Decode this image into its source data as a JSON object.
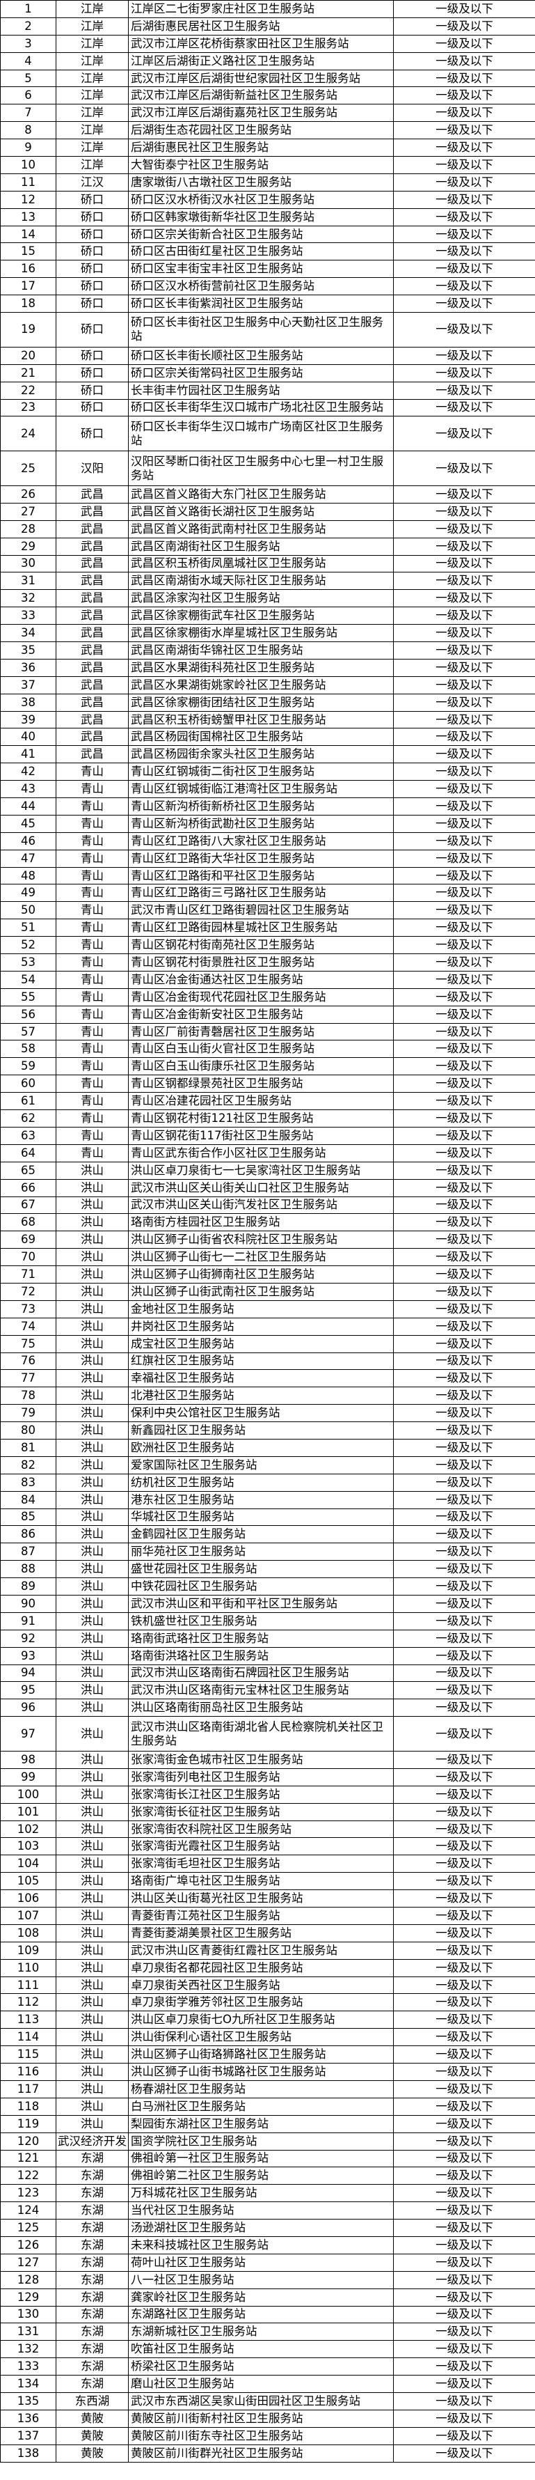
{
  "table": {
    "level": "一级及以下",
    "rows": [
      [
        "1",
        "江岸",
        "江岸区二七街罗家庄社区卫生服务站",
        "一级及以下"
      ],
      [
        "2",
        "江岸",
        "后湖街惠民居社区卫生服务站",
        "一级及以下"
      ],
      [
        "3",
        "江岸",
        "武汉市江岸区花桥街蔡家田社区卫生服务站",
        "一级及以下"
      ],
      [
        "4",
        "江岸",
        "江岸区后湖街正义路社区卫生服务站",
        "一级及以下"
      ],
      [
        "5",
        "江岸",
        "武汉市江岸区后湖街世纪家园社区卫生服务站",
        "一级及以下"
      ],
      [
        "6",
        "江岸",
        "武汉市江岸区后湖街新益社区卫生服务站",
        "一级及以下"
      ],
      [
        "7",
        "江岸",
        "武汉市江岸区后湖街嘉苑社区卫生服务站",
        "一级及以下"
      ],
      [
        "8",
        "江岸",
        "后湖街生态花园社区卫生服务站",
        "一级及以下"
      ],
      [
        "9",
        "江岸",
        "后湖街惠民社区卫生服务站",
        "一级及以下"
      ],
      [
        "10",
        "江岸",
        "大智街泰宁社区卫生服务站",
        "一级及以下"
      ],
      [
        "11",
        "江汉",
        "唐家墩街八古墩社区卫生服务站",
        "一级及以下"
      ],
      [
        "12",
        "硚口",
        "硚口区汉水桥街汉水社区卫生服务站",
        "一级及以下"
      ],
      [
        "13",
        "硚口",
        "硚口区韩家墩街新华社区卫生服务站",
        "一级及以下"
      ],
      [
        "14",
        "硚口",
        "硚口区宗关街新合社区卫生服务站",
        "一级及以下"
      ],
      [
        "15",
        "硚口",
        "硚口区古田街红星社区卫生服务站",
        "一级及以下"
      ],
      [
        "16",
        "硚口",
        "硚口区宝丰街宝丰社区卫生服务站",
        "一级及以下"
      ],
      [
        "17",
        "硚口",
        " 硚口区汉水桥街营前社区卫生服务站",
        "一级及以下"
      ],
      [
        "18",
        "硚口",
        "硚口区长丰街紫润社区卫生服务站",
        "一级及以下"
      ],
      [
        "19",
        "硚口",
        "硚口区长丰街社区卫生服务中心天勤社区卫生服务站",
        "一级及以下"
      ],
      [
        "20",
        "硚口",
        "硚口区长丰街长顺社区卫生服务站",
        "一级及以下"
      ],
      [
        "21",
        "硚口",
        "硚口区宗关街常码社区卫生服务站",
        "一级及以下"
      ],
      [
        "22",
        "硚口",
        "长丰街丰竹园社区卫生服务站",
        "一级及以下"
      ],
      [
        "23",
        "硚口",
        "硚口区长丰街华生汉口城市广场北社区卫生服务站",
        "一级及以下"
      ],
      [
        "24",
        "硚口",
        "硚口区长丰街华生汉口城市广场南区社区卫生服务站",
        "一级及以下"
      ],
      [
        "25",
        "汉阳",
        "汉阳区琴断口街社区卫生服务中心七里一村卫生服务站",
        "一级及以下"
      ],
      [
        "26",
        "武昌",
        "武昌区首义路街大东门社区卫生服务站",
        "一级及以下"
      ],
      [
        "27",
        "武昌",
        "武昌区首义路街长湖社区卫生服务站",
        "一级及以下"
      ],
      [
        "28",
        "武昌",
        "武昌区首义路街武南村社区卫生服务站",
        "一级及以下"
      ],
      [
        "29",
        "武昌",
        "武昌区南湖街社区卫生服务站",
        "一级及以下"
      ],
      [
        "30",
        "武昌",
        "武昌区积玉桥街凤凰城社区卫生服务站",
        "一级及以下"
      ],
      [
        "31",
        "武昌",
        "武昌区南湖街水域天际社区卫生服务站",
        "一级及以下"
      ],
      [
        "32",
        "武昌",
        "武昌区涂家沟社区卫生服务站",
        "一级及以下"
      ],
      [
        "33",
        "武昌",
        "武昌区徐家棚街武车社区卫生服务站",
        "一级及以下"
      ],
      [
        "34",
        "武昌",
        "武昌区徐家棚街水岸星城社区卫生服务站",
        "一级及以下"
      ],
      [
        "35",
        "武昌",
        "武昌区南湖街华锦社区卫生服务站",
        "一级及以下"
      ],
      [
        "36",
        "武昌",
        "武昌区水果湖街科苑社区卫生服务站",
        "一级及以下"
      ],
      [
        "37",
        "武昌",
        "武昌区水果湖街姚家岭社区卫生服务站",
        "一级及以下"
      ],
      [
        "38",
        "武昌",
        "武昌区徐家棚街团结社区卫生服务站",
        "一级及以下"
      ],
      [
        "39",
        "武昌",
        "武昌区积玉桥街螃蟹甲社区卫生服务站",
        "一级及以下"
      ],
      [
        "40",
        "武昌",
        "武昌区杨园街国棉社区卫生服务站",
        "一级及以下"
      ],
      [
        "41",
        "武昌",
        "武昌区杨园街余家头社区卫生服务站",
        "一级及以下"
      ],
      [
        "42",
        "青山",
        "青山区红钢城街二街社区卫生服务站",
        "一级及以下"
      ],
      [
        "43",
        "青山",
        "青山区红钢城街临江港湾社区卫生服务站",
        "一级及以下"
      ],
      [
        "44",
        "青山",
        "青山区新沟桥街新桥社区卫生服务站",
        "一级及以下"
      ],
      [
        "45",
        "青山",
        "青山区新沟桥街武勘社区卫生服务站",
        "一级及以下"
      ],
      [
        "46",
        "青山",
        "青山区红卫路街八大家社区卫生服务站",
        "一级及以下"
      ],
      [
        "47",
        "青山",
        "青山区红卫路街大华社区卫生服务站",
        "一级及以下"
      ],
      [
        "48",
        "青山",
        "青山区红卫路街和平社区卫生服务站",
        "一级及以下"
      ],
      [
        "49",
        "青山",
        "青山区红卫路街三弓路社区卫生服务站",
        "一级及以下"
      ],
      [
        "50",
        "青山",
        "武汉市青山区红卫路街碧园社区卫生服务站",
        "一级及以下"
      ],
      [
        "51",
        "青山",
        "青山区红卫路街园林星城社区卫生服务站",
        "一级及以下"
      ],
      [
        "52",
        "青山",
        "青山区钢花村街南苑社区卫生服务站",
        "一级及以下"
      ],
      [
        "53",
        "青山",
        "青山区钢花村街景胜社区卫生服务站",
        "一级及以下"
      ],
      [
        "54",
        "青山",
        "青山区冶金街通达社区卫生服务站",
        "一级及以下"
      ],
      [
        "55",
        "青山",
        "青山区冶金街现代花园社区卫生服务站",
        "一级及以下"
      ],
      [
        "56",
        "青山",
        "青山区冶金街新安社区卫生服务站",
        "一级及以下"
      ],
      [
        "57",
        "青山",
        "青山区厂前街青磬居社区卫生服务站",
        "一级及以下"
      ],
      [
        "58",
        "青山",
        "青山区白玉山街火官社区卫生服务站",
        "一级及以下"
      ],
      [
        "59",
        "青山",
        "青山区白玉山街康乐社区卫生服务站",
        "一级及以下"
      ],
      [
        "60",
        "青山",
        "青山区钢都绿景苑社区卫生服务站",
        "一级及以下"
      ],
      [
        "61",
        "青山",
        "青山区冶建花园社区卫生服务站",
        "一级及以下"
      ],
      [
        "62",
        "青山",
        "青山区钢花村街121社区卫生服务站",
        "一级及以下"
      ],
      [
        "63",
        "青山",
        "青山区钢花街117街社区卫生服务站",
        "一级及以下"
      ],
      [
        "64",
        "青山",
        "青山区武东街合作小区社区卫生服务站",
        "一级及以下"
      ],
      [
        "65",
        "洪山",
        "洪山区卓刀泉街七一七吴家湾社区卫生服务站",
        "一级及以下"
      ],
      [
        "66",
        "洪山",
        "武汉市洪山区关山街关山口社区卫生服务站",
        "一级及以下"
      ],
      [
        "67",
        "洪山",
        "武汉市洪山区关山街汽发社区卫生服务站",
        "一级及以下"
      ],
      [
        "68",
        "洪山",
        "珞南街方桂园社区卫生服务站",
        "一级及以下"
      ],
      [
        "69",
        "洪山",
        "洪山区狮子山街省农科院社区卫生服务站",
        "一级及以下"
      ],
      [
        "70",
        "洪山",
        "洪山区狮子山街七一二社区卫生服务站",
        "一级及以下"
      ],
      [
        "71",
        "洪山",
        "洪山区狮子山街狮南社区卫生服务站",
        "一级及以下"
      ],
      [
        "72",
        "洪山",
        "洪山区狮子山街武南社区卫生服务站",
        "一级及以下"
      ],
      [
        "73",
        "洪山",
        "金地社区卫生服务站",
        "一级及以下"
      ],
      [
        "74",
        "洪山",
        "井岗社区卫生服务站",
        "一级及以下"
      ],
      [
        "75",
        "洪山",
        "成宝社区卫生服务站",
        "一级及以下"
      ],
      [
        "76",
        "洪山",
        "红旗社区卫生服务站",
        "一级及以下"
      ],
      [
        "77",
        "洪山",
        "幸福社区卫生服务站",
        "一级及以下"
      ],
      [
        "78",
        "洪山",
        "北港社区卫生服务站",
        "一级及以下"
      ],
      [
        "79",
        "洪山",
        "保利中央公馆社区卫生服务站",
        "一级及以下"
      ],
      [
        "80",
        "洪山",
        "新鑫园社区卫生服务站",
        "一级及以下"
      ],
      [
        "81",
        "洪山",
        "欧洲社区卫生服务站",
        "一级及以下"
      ],
      [
        "82",
        "洪山",
        "爱家国际社区卫生服务站",
        "一级及以下"
      ],
      [
        "83",
        "洪山",
        "纺机社区卫生服务站",
        "一级及以下"
      ],
      [
        "84",
        "洪山",
        "港东社区卫生服务站",
        "一级及以下"
      ],
      [
        "85",
        "洪山",
        "华城社区卫生服务站",
        "一级及以下"
      ],
      [
        "86",
        "洪山",
        "金鹤园社区卫生服务站",
        "一级及以下"
      ],
      [
        "87",
        "洪山",
        "丽华苑社区卫生服务站",
        "一级及以下"
      ],
      [
        "88",
        "洪山",
        "盛世花园社区卫生服务站",
        "一级及以下"
      ],
      [
        "89",
        "洪山",
        "中铁花园社区卫生服务站",
        "一级及以下"
      ],
      [
        "90",
        "洪山",
        "武汉市洪山区和平街和平社区卫生服务站",
        "一级及以下"
      ],
      [
        "91",
        "洪山",
        "铁机盛世社区卫生服务站",
        "一级及以下"
      ],
      [
        "92",
        "洪山",
        "珞南街武珞社区卫生服务站",
        "一级及以下"
      ],
      [
        "93",
        "洪山",
        "珞南街洪珞社区卫生服务站",
        "一级及以下"
      ],
      [
        "94",
        "洪山",
        "武汉市洪山区珞南街石牌园社区卫生服务站",
        "一级及以下"
      ],
      [
        "95",
        "洪山",
        "武汉市洪山区珞南街元宝林社区卫生服务站",
        "一级及以下"
      ],
      [
        "96",
        "洪山",
        "洪山区珞南街丽岛社区卫生服务站",
        "一级及以下"
      ],
      [
        "97",
        "洪山",
        "武汉市洪山区珞南街湖北省人民检察院机关社区卫生服务站",
        "一级及以下"
      ],
      [
        "98",
        "洪山",
        "张家湾街金色城市社区卫生服务站",
        "一级及以下"
      ],
      [
        "99",
        "洪山",
        "张家湾街列电社区卫生服务站",
        "一级及以下"
      ],
      [
        "100",
        "洪山",
        "张家湾街长江社区卫生服务站",
        "一级及以下"
      ],
      [
        "101",
        "洪山",
        "张家湾街长征社区卫生服务站",
        "一级及以下"
      ],
      [
        "102",
        "洪山",
        "张家湾街农科院社区卫生服务站",
        "一级及以下"
      ],
      [
        "103",
        "洪山",
        "张家湾街光霞社区卫生服务站",
        "一级及以下"
      ],
      [
        "104",
        "洪山",
        "张家湾街毛坦社区卫生服务站",
        "一级及以下"
      ],
      [
        "105",
        "洪山",
        "珞南街广埠屯社区卫生服务站",
        "一级及以下"
      ],
      [
        "106",
        "洪山",
        "洪山区关山街葛光社区卫生服务站",
        "一级及以下"
      ],
      [
        "107",
        "洪山",
        "青菱街青江苑社区卫生服务站",
        "一级及以下"
      ],
      [
        "108",
        "洪山",
        "青菱街菱湖美景社区卫生服务站",
        "一级及以下"
      ],
      [
        "109",
        "洪山",
        "武汉市洪山区青菱街红霞社区卫生服务站",
        "一级及以下"
      ],
      [
        "110",
        "洪山",
        "卓刀泉街名都花园社区卫生服务站",
        "一级及以下"
      ],
      [
        "111",
        "洪山",
        "卓刀泉街关西社区卫生服务站",
        "一级及以下"
      ],
      [
        "112",
        "洪山",
        "卓刀泉街学雅芳邻社区卫生服务站",
        "一级及以下"
      ],
      [
        "113",
        "洪山",
        "洪山区卓刀泉街七O九所社区卫生服务站",
        "一级及以下"
      ],
      [
        "114",
        "洪山",
        "洪山街保利心语社区卫生服务站",
        "一级及以下"
      ],
      [
        "115",
        "洪山",
        "洪山区狮子山街珞狮路社区卫生服务站",
        "一级及以下"
      ],
      [
        "116",
        "洪山",
        "洪山区狮子山街书城路社区卫生服务站",
        "一级及以下"
      ],
      [
        "117",
        "洪山",
        "杨春湖社区卫生服务站",
        "一级及以下"
      ],
      [
        "118",
        "洪山",
        "白马洲社区卫生服务站",
        "一级及以下"
      ],
      [
        "119",
        "洪山",
        "梨园街东湖社区卫生服务站",
        "一级及以下"
      ],
      [
        "120",
        "武汉经济开发",
        "国资学院社区卫生服务站",
        "一级及以下"
      ],
      [
        "121",
        "东湖",
        "佛祖岭第一社区卫生服务站",
        "一级及以下"
      ],
      [
        "122",
        "东湖",
        "佛祖岭第二社区卫生服务站",
        "一级及以下"
      ],
      [
        "123",
        "东湖",
        "万科城花社区卫生服务站",
        "一级及以下"
      ],
      [
        "124",
        "东湖",
        "当代社区卫生服务站",
        "一级及以下"
      ],
      [
        "125",
        "东湖",
        "汤逊湖社区卫生服务站",
        "一级及以下"
      ],
      [
        "126",
        "东湖",
        "未来科技城社区卫生服务站",
        "一级及以下"
      ],
      [
        "127",
        "东湖",
        "荷叶山社区卫生服务站",
        "一级及以下"
      ],
      [
        "128",
        "东湖",
        "八一社区卫生服务站",
        "一级及以下"
      ],
      [
        "129",
        "东湖",
        "龚家岭社区卫生服务站",
        "一级及以下"
      ],
      [
        "130",
        "东湖",
        "东湖路社区卫生服务站",
        "一级及以下"
      ],
      [
        "131",
        "东湖",
        "东湖新城社区卫生服务站",
        "一级及以下"
      ],
      [
        "132",
        "东湖",
        "吹笛社区卫生服务站",
        "一级及以下"
      ],
      [
        "133",
        "东湖",
        "桥梁社区卫生服务站",
        "一级及以下"
      ],
      [
        "134",
        "东湖",
        "磨山社区卫生服务站",
        "一级及以下"
      ],
      [
        "135",
        "东西湖",
        "武汉市东西湖区吴家山街田园社区卫生服务站",
        "一级及以下"
      ],
      [
        "136",
        "黄陂",
        "黄陂区前川街新村社区卫生服务站",
        "一级及以下"
      ],
      [
        "137",
        "黄陂",
        "黄陂区前川街东寺社区卫生服务站",
        "一级及以下"
      ],
      [
        "138",
        "黄陂",
        "黄陂区前川街群光社区卫生服务站",
        "一级及以下"
      ]
    ]
  }
}
